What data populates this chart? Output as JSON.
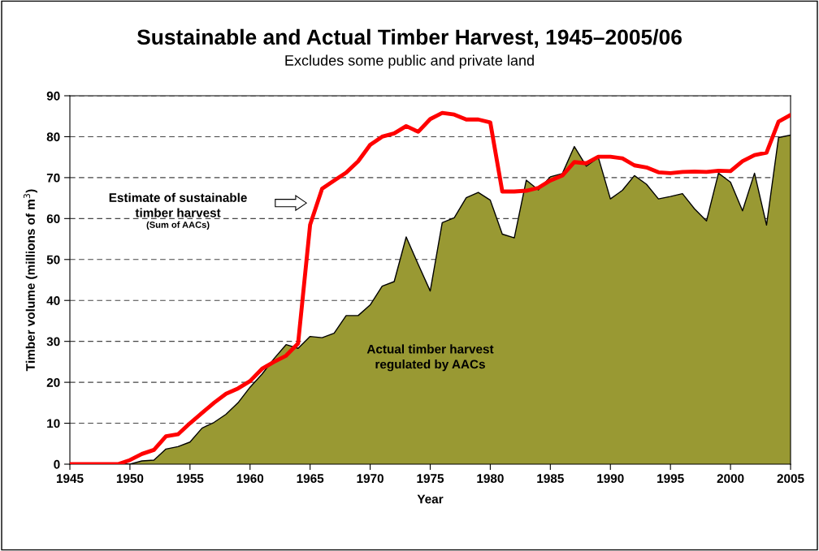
{
  "chart_data": {
    "type": "area",
    "title": "Sustainable and Actual Timber Harvest, 1945–2005/06",
    "subtitle": "Excludes some public and private land",
    "xlabel": "Year",
    "ylabel": "Timber volume (millions of m$^{3}$)",
    "x": [
      1945,
      1946,
      1947,
      1948,
      1949,
      1950,
      1951,
      1952,
      1953,
      1954,
      1955,
      1956,
      1957,
      1958,
      1959,
      1960,
      1961,
      1962,
      1963,
      1964,
      1965,
      1966,
      1967,
      1968,
      1969,
      1970,
      1971,
      1972,
      1973,
      1974,
      1975,
      1976,
      1977,
      1978,
      1979,
      1980,
      1981,
      1982,
      1983,
      1984,
      1985,
      1986,
      1987,
      1988,
      1989,
      1990,
      1991,
      1992,
      1993,
      1994,
      1995,
      1996,
      1997,
      1998,
      1999,
      2000,
      2001,
      2002,
      2003,
      2004,
      2005
    ],
    "series": [
      {
        "color": "#999933",
        "values": [
          0,
          0,
          0,
          0,
          0,
          0,
          0.8,
          1,
          3.7,
          4.3,
          5.4,
          8.8,
          10.2,
          12.2,
          15,
          18.8,
          22,
          25.8,
          29.2,
          28.3,
          31.2,
          30.9,
          32,
          36.3,
          36.3,
          38.9,
          43.5,
          44.6,
          55.5,
          48.8,
          42.3,
          59,
          60.2,
          65.1,
          66.4,
          64.5,
          56.2,
          55.3,
          69.4,
          67,
          70.2,
          71,
          77.6,
          72.8,
          74.9,
          64.8,
          66.9,
          70.5,
          68.4,
          64.8,
          65.4,
          66.1,
          62.4,
          59.4,
          71.1,
          68.9,
          61.9,
          71.1,
          58.4,
          79.8,
          80.4
        ]
      },
      {
        "type": "line",
        "color": "#ff0000",
        "values": [
          0,
          0,
          0,
          0,
          0,
          1,
          2.5,
          3.5,
          6.8,
          7.3,
          10,
          12.5,
          15,
          17.2,
          18.5,
          20.3,
          23.3,
          25,
          26.5,
          29.5,
          58.5,
          67.3,
          69.3,
          71.2,
          74,
          78,
          80,
          80.8,
          82.6,
          81.2,
          84.3,
          85.8,
          85.4,
          84.2,
          84.2,
          83.5,
          66.6,
          66.6,
          66.8,
          67.5,
          69.3,
          70.5,
          73.8,
          73.5,
          75.1,
          75.1,
          74.7,
          73,
          72.5,
          71.3,
          71.1,
          71.4,
          71.5,
          71.4,
          71.7,
          71.6,
          74,
          75.5,
          76.1,
          83.7,
          85.3
        ]
      }
    ],
    "annotations": [
      "Estimate of sustainable\ntimber harvest",
      "(Sum of AACs)",
      "Actual timber harvest\nregulated by AACs"
    ],
    "xlim": [
      1945,
      2005
    ],
    "ylim": [
      0,
      90
    ],
    "xticks": [
      1945,
      1950,
      1955,
      1960,
      1965,
      1970,
      1975,
      1980,
      1985,
      1990,
      1995,
      2000,
      2005
    ],
    "yticks": [
      0,
      10,
      20,
      30,
      40,
      50,
      60,
      70,
      80,
      90
    ],
    "grid": "y",
    "line_style": "solid"
  }
}
